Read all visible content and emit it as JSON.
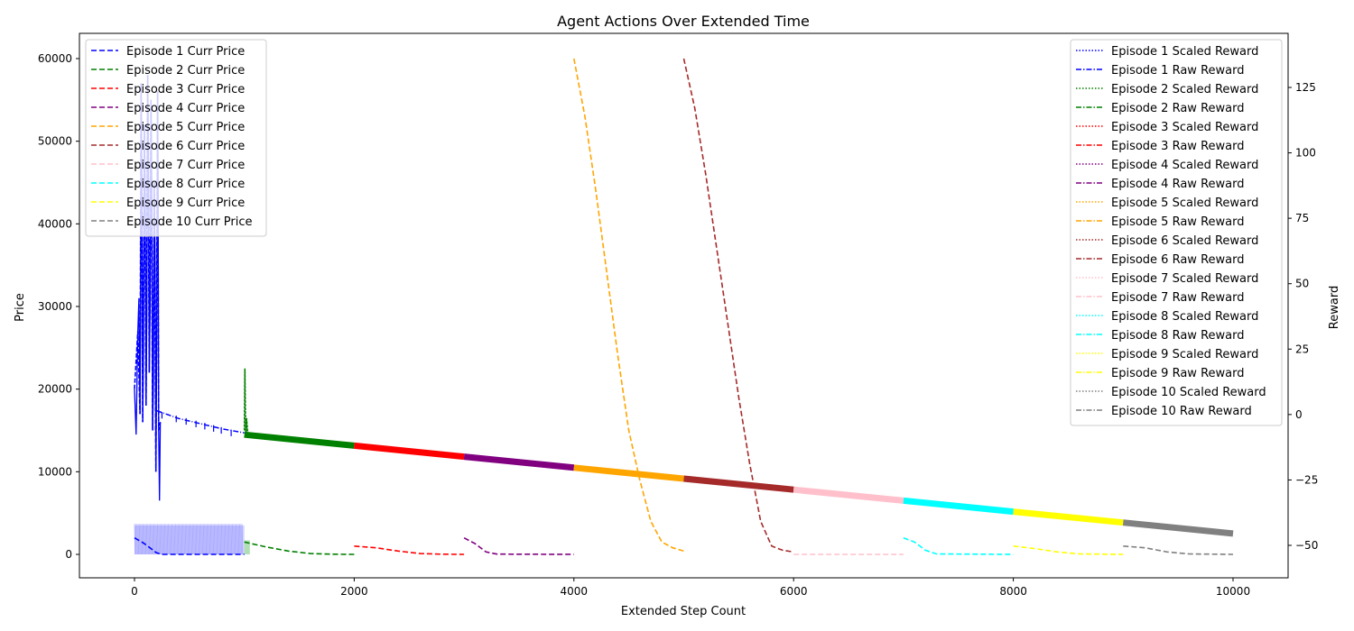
{
  "chart_data": {
    "type": "line",
    "title": "Agent Actions Over Extended Time",
    "xlabel": "Extended Step Count",
    "ylabel": "Price",
    "y2label": "Reward",
    "xlim": [
      -500,
      10500
    ],
    "ylim": [
      -2500,
      63000
    ],
    "y2lim": [
      -61,
      145
    ],
    "xticks": [
      "0",
      "2000",
      "4000",
      "6000",
      "8000",
      "10000"
    ],
    "yticks": [
      "0",
      "10000",
      "20000",
      "30000",
      "40000",
      "50000",
      "60000"
    ],
    "y2ticks": [
      "−50",
      "−25",
      "0",
      "25",
      "50",
      "75",
      "100",
      "125"
    ],
    "legend_left_position": "upper left",
    "legend_right_position": "upper right",
    "price_series": [
      {
        "name": "Episode 1 Curr Price",
        "color": "#0000ff",
        "points": [
          [
            0,
            2000
          ],
          [
            80,
            1400
          ],
          [
            150,
            700
          ],
          [
            200,
            200
          ],
          [
            250,
            0
          ],
          [
            1000,
            0
          ]
        ]
      },
      {
        "name": "Episode 2 Curr Price",
        "color": "#008000",
        "points": [
          [
            1000,
            1500
          ],
          [
            1200,
            900
          ],
          [
            1400,
            400
          ],
          [
            1600,
            100
          ],
          [
            1800,
            20
          ],
          [
            2000,
            0
          ]
        ]
      },
      {
        "name": "Episode 3 Curr Price",
        "color": "#ff0000",
        "points": [
          [
            2000,
            1000
          ],
          [
            2200,
            800
          ],
          [
            2400,
            400
          ],
          [
            2600,
            100
          ],
          [
            2800,
            20
          ],
          [
            3000,
            0
          ]
        ]
      },
      {
        "name": "Episode 4 Curr Price",
        "color": "#800080",
        "points": [
          [
            3000,
            2000
          ],
          [
            3100,
            1300
          ],
          [
            3200,
            300
          ],
          [
            3300,
            30
          ],
          [
            4000,
            0
          ]
        ]
      },
      {
        "name": "Episode 5 Curr Price",
        "color": "#ffa500",
        "points": [
          [
            4000,
            60000
          ],
          [
            4100,
            53000
          ],
          [
            4200,
            44000
          ],
          [
            4300,
            34000
          ],
          [
            4400,
            24000
          ],
          [
            4500,
            15000
          ],
          [
            4600,
            9000
          ],
          [
            4700,
            4000
          ],
          [
            4800,
            1500
          ],
          [
            4900,
            800
          ],
          [
            5000,
            400
          ]
        ]
      },
      {
        "name": "Episode 6 Curr Price",
        "color": "#a52a2a",
        "points": [
          [
            5000,
            60000
          ],
          [
            5100,
            54000
          ],
          [
            5200,
            46000
          ],
          [
            5300,
            37000
          ],
          [
            5400,
            28000
          ],
          [
            5500,
            19000
          ],
          [
            5600,
            11000
          ],
          [
            5700,
            4000
          ],
          [
            5800,
            1000
          ],
          [
            5900,
            500
          ],
          [
            6000,
            300
          ]
        ]
      },
      {
        "name": "Episode 7 Curr Price",
        "color": "#ffc0cb",
        "points": [
          [
            6000,
            0
          ],
          [
            7000,
            0
          ]
        ]
      },
      {
        "name": "Episode 8 Curr Price",
        "color": "#00ffff",
        "points": [
          [
            7000,
            2000
          ],
          [
            7100,
            1500
          ],
          [
            7200,
            500
          ],
          [
            7300,
            50
          ],
          [
            8000,
            0
          ]
        ]
      },
      {
        "name": "Episode 9 Curr Price",
        "color": "#ffff00",
        "points": [
          [
            8000,
            1000
          ],
          [
            8200,
            700
          ],
          [
            8400,
            300
          ],
          [
            8600,
            50
          ],
          [
            9000,
            0
          ]
        ]
      },
      {
        "name": "Episode 10 Curr Price",
        "color": "#808080",
        "points": [
          [
            9000,
            1000
          ],
          [
            9200,
            800
          ],
          [
            9400,
            300
          ],
          [
            9600,
            50
          ],
          [
            10000,
            0
          ]
        ]
      }
    ],
    "reward_series": [
      {
        "name": "Episode 1 Scaled Reward",
        "color": "#0000ff",
        "style": "dotted"
      },
      {
        "name": "Episode 1 Raw Reward",
        "color": "#0000ff",
        "style": "dashdot",
        "segment": [
          [
            1000,
            -7
          ]
        ]
      },
      {
        "name": "Episode 2 Scaled Reward",
        "color": "#008000",
        "style": "dotted"
      },
      {
        "name": "Episode 2 Raw Reward",
        "color": "#008000",
        "style": "dashdot",
        "segment": [
          [
            1000,
            -7.7
          ],
          [
            2000,
            -11.9
          ]
        ]
      },
      {
        "name": "Episode 3 Scaled Reward",
        "color": "#ff0000",
        "style": "dotted"
      },
      {
        "name": "Episode 3 Raw Reward",
        "color": "#ff0000",
        "style": "dashdot",
        "segment": [
          [
            2000,
            -11.9
          ],
          [
            3000,
            -16.1
          ]
        ]
      },
      {
        "name": "Episode 4 Scaled Reward",
        "color": "#800080",
        "style": "dotted"
      },
      {
        "name": "Episode 4 Raw Reward",
        "color": "#800080",
        "style": "dashdot",
        "segment": [
          [
            3000,
            -16.1
          ],
          [
            4000,
            -20.3
          ]
        ]
      },
      {
        "name": "Episode 5 Scaled Reward",
        "color": "#ffa500",
        "style": "dotted"
      },
      {
        "name": "Episode 5 Raw Reward",
        "color": "#ffa500",
        "style": "dashdot",
        "segment": [
          [
            4000,
            -20.3
          ],
          [
            5000,
            -24.5
          ]
        ]
      },
      {
        "name": "Episode 6 Scaled Reward",
        "color": "#a52a2a",
        "style": "dotted"
      },
      {
        "name": "Episode 6 Raw Reward",
        "color": "#a52a2a",
        "style": "dashdot",
        "segment": [
          [
            5000,
            -24.5
          ],
          [
            6000,
            -28.7
          ]
        ]
      },
      {
        "name": "Episode 7 Scaled Reward",
        "color": "#ffc0cb",
        "style": "dotted"
      },
      {
        "name": "Episode 7 Raw Reward",
        "color": "#ffc0cb",
        "style": "dashdot",
        "segment": [
          [
            6000,
            -28.7
          ],
          [
            7000,
            -32.9
          ]
        ]
      },
      {
        "name": "Episode 8 Scaled Reward",
        "color": "#00ffff",
        "style": "dotted"
      },
      {
        "name": "Episode 8 Raw Reward",
        "color": "#00ffff",
        "style": "dashdot",
        "segment": [
          [
            7000,
            -32.9
          ],
          [
            8000,
            -37.1
          ]
        ]
      },
      {
        "name": "Episode 9 Scaled Reward",
        "color": "#ffff00",
        "style": "dotted"
      },
      {
        "name": "Episode 9 Raw Reward",
        "color": "#ffff00",
        "style": "dashdot",
        "segment": [
          [
            8000,
            -37.1
          ],
          [
            9000,
            -41.3
          ]
        ]
      },
      {
        "name": "Episode 10 Scaled Reward",
        "color": "#808080",
        "style": "dotted"
      },
      {
        "name": "Episode 10 Raw Reward",
        "color": "#808080",
        "style": "dashdot",
        "segment": [
          [
            9000,
            -41.3
          ],
          [
            10000,
            -45.5
          ]
        ]
      }
    ],
    "episode1_raw_reward_segment": [
      [
        200,
        1.5
      ],
      [
        400,
        -1.5
      ],
      [
        600,
        -3.5
      ],
      [
        800,
        -5.5
      ],
      [
        1000,
        -7
      ]
    ],
    "episode1_price_spikes": [
      [
        0,
        20000
      ],
      [
        30,
        27000
      ],
      [
        50,
        17000
      ],
      [
        60,
        57000
      ],
      [
        75,
        16000
      ],
      [
        90,
        52000
      ],
      [
        105,
        18000
      ],
      [
        120,
        58000
      ],
      [
        135,
        22000
      ],
      [
        150,
        55000
      ],
      [
        165,
        15000
      ],
      [
        180,
        45000
      ],
      [
        195,
        10000
      ],
      [
        210,
        56000
      ],
      [
        220,
        15000
      ],
      [
        235,
        16000
      ]
    ],
    "episode2_price_spikes": [
      [
        1000,
        15000
      ],
      [
        1005,
        22500
      ],
      [
        1010,
        16500
      ],
      [
        1015,
        14500
      ],
      [
        1020,
        16500
      ],
      [
        1030,
        14800
      ]
    ],
    "episode1_scaled_reward_band": [
      [
        0,
        3500
      ],
      [
        1000,
        3500
      ]
    ],
    "episode2_scaled_reward_band": [
      [
        1000,
        1700
      ],
      [
        1050,
        1700
      ]
    ]
  }
}
